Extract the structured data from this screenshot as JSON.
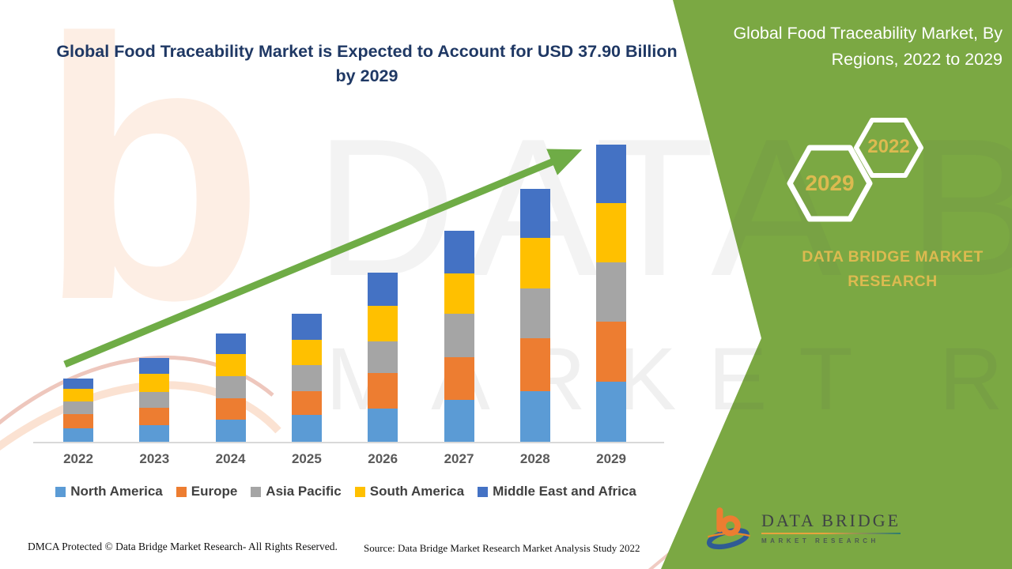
{
  "header": {
    "title": "Global Food Traceability Market is Expected to Account for USD 37.90 Billion by 2029"
  },
  "side_panel": {
    "title": "Global Food Traceability Market, By Regions, 2022 to 2029",
    "badge_back": "2029",
    "badge_front": "2022",
    "brand": "DATA BRIDGE MARKET RESEARCH"
  },
  "watermark": {
    "letter": "b",
    "line1": "DATA BRIDGE",
    "line2": "MARKET RESEARCH"
  },
  "chart_data": {
    "type": "bar",
    "stacked": true,
    "title": "Global Food Traceability Market, By Regions, 2022 to 2029",
    "units": "USD Billion",
    "categories": [
      "2022",
      "2023",
      "2024",
      "2025",
      "2026",
      "2027",
      "2028",
      "2029"
    ],
    "series": [
      {
        "name": "North America",
        "color": "#5B9BD5",
        "values": [
          1.7,
          2.1,
          2.8,
          3.4,
          4.2,
          5.3,
          6.5,
          7.7
        ]
      },
      {
        "name": "Europe",
        "color": "#ED7D31",
        "values": [
          1.8,
          2.2,
          2.7,
          3.1,
          4.6,
          5.5,
          6.7,
          7.6
        ]
      },
      {
        "name": "Asia Pacific",
        "color": "#A5A5A5",
        "values": [
          1.6,
          2.1,
          2.9,
          3.3,
          4.0,
          5.5,
          6.4,
          7.6
        ]
      },
      {
        "name": "South America",
        "color": "#FFC000",
        "values": [
          1.6,
          2.3,
          2.8,
          3.2,
          4.5,
          5.2,
          6.4,
          7.5
        ]
      },
      {
        "name": "Middle East and Africa",
        "color": "#4472C4",
        "values": [
          1.4,
          2.0,
          2.6,
          3.3,
          4.3,
          5.4,
          6.3,
          7.5
        ]
      }
    ],
    "totals": [
      8.1,
      10.7,
      13.8,
      16.3,
      21.6,
      26.9,
      32.3,
      37.9
    ],
    "ylim": [
      0,
      40
    ],
    "grid": false,
    "axis_labels_visible": false,
    "legend_position": "bottom",
    "annotations": [
      "green upward trend arrow spanning 2022 to 2029"
    ]
  },
  "footer": {
    "dmca": "DMCA Protected © Data Bridge Market Research- All Rights Reserved.",
    "source": "Source: Data Bridge Market Research Market Analysis Study 2022"
  },
  "logo": {
    "name": "DATA BRIDGE",
    "tagline": "MARKET RESEARCH"
  },
  "colors": {
    "panel_green": "#7BA843",
    "arrow_green": "#6FAC46",
    "gold": "#DCBA50",
    "title_navy": "#1F3864",
    "axis_gray": "#D9D9D9",
    "year_label_gray": "#595959",
    "legend_text_gray": "#404040"
  }
}
